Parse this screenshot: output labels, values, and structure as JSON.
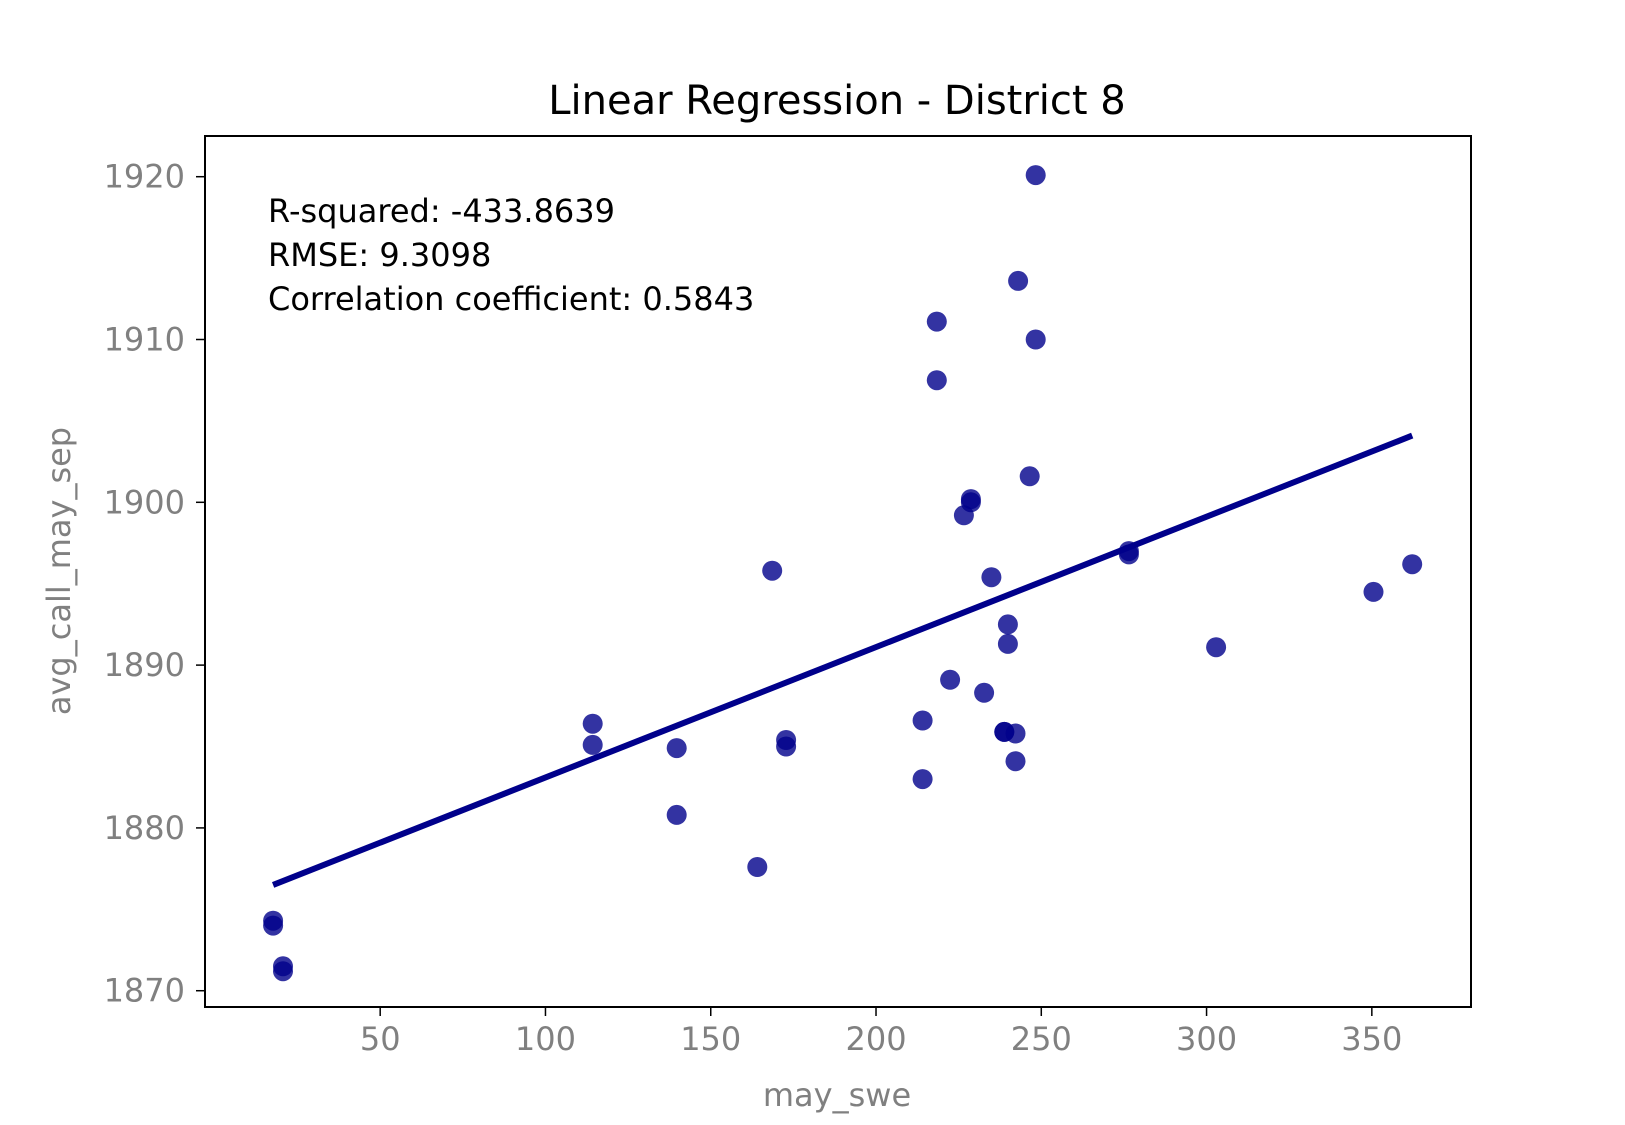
{
  "chart_data": {
    "type": "scatter",
    "title": "Linear Regression - District 8",
    "xlabel": "may_swe",
    "ylabel": "avg_call_may_sep",
    "xlim": [
      -3,
      380
    ],
    "ylim": [
      1869,
      1922.5
    ],
    "xticks": [
      50,
      100,
      150,
      200,
      250,
      300,
      350
    ],
    "yticks": [
      1870,
      1880,
      1890,
      1900,
      1910,
      1920
    ],
    "grid": false,
    "colors": {
      "points": "#00008b",
      "line": "#00008b",
      "tick_text": "#808080",
      "title_text": "#000000"
    },
    "annotations": [
      "R-squared: -433.8639",
      "RMSE: 9.3098",
      "Correlation coefficient: 0.5843"
    ],
    "points": [
      {
        "x": 17.6,
        "y": 1874.3
      },
      {
        "x": 17.6,
        "y": 1874.0
      },
      {
        "x": 20.6,
        "y": 1871.5
      },
      {
        "x": 20.6,
        "y": 1871.2
      },
      {
        "x": 114.3,
        "y": 1886.4
      },
      {
        "x": 114.3,
        "y": 1885.1
      },
      {
        "x": 139.7,
        "y": 1884.9
      },
      {
        "x": 139.7,
        "y": 1880.8
      },
      {
        "x": 164.1,
        "y": 1877.6
      },
      {
        "x": 168.6,
        "y": 1895.8
      },
      {
        "x": 172.8,
        "y": 1885.4
      },
      {
        "x": 172.8,
        "y": 1885.0
      },
      {
        "x": 214.1,
        "y": 1886.6
      },
      {
        "x": 214.1,
        "y": 1883.0
      },
      {
        "x": 218.4,
        "y": 1911.1
      },
      {
        "x": 218.4,
        "y": 1907.5
      },
      {
        "x": 222.4,
        "y": 1889.1
      },
      {
        "x": 226.6,
        "y": 1899.2
      },
      {
        "x": 228.7,
        "y": 1900.2
      },
      {
        "x": 228.7,
        "y": 1900.0
      },
      {
        "x": 232.7,
        "y": 1888.3
      },
      {
        "x": 234.9,
        "y": 1895.4
      },
      {
        "x": 238.8,
        "y": 1885.9
      },
      {
        "x": 238.8,
        "y": 1885.9
      },
      {
        "x": 239.9,
        "y": 1892.5
      },
      {
        "x": 239.9,
        "y": 1891.3
      },
      {
        "x": 242.2,
        "y": 1885.8
      },
      {
        "x": 242.2,
        "y": 1884.1
      },
      {
        "x": 243.0,
        "y": 1913.6
      },
      {
        "x": 246.5,
        "y": 1901.6
      },
      {
        "x": 248.3,
        "y": 1920.1
      },
      {
        "x": 248.3,
        "y": 1910.0
      },
      {
        "x": 276.5,
        "y": 1897.0
      },
      {
        "x": 276.5,
        "y": 1896.8
      },
      {
        "x": 302.9,
        "y": 1891.1
      },
      {
        "x": 350.5,
        "y": 1894.5
      },
      {
        "x": 362.2,
        "y": 1896.2
      }
    ],
    "regression_line": {
      "x": [
        17.6,
        362.2
      ],
      "y": [
        1876.5,
        1904.1
      ]
    }
  }
}
